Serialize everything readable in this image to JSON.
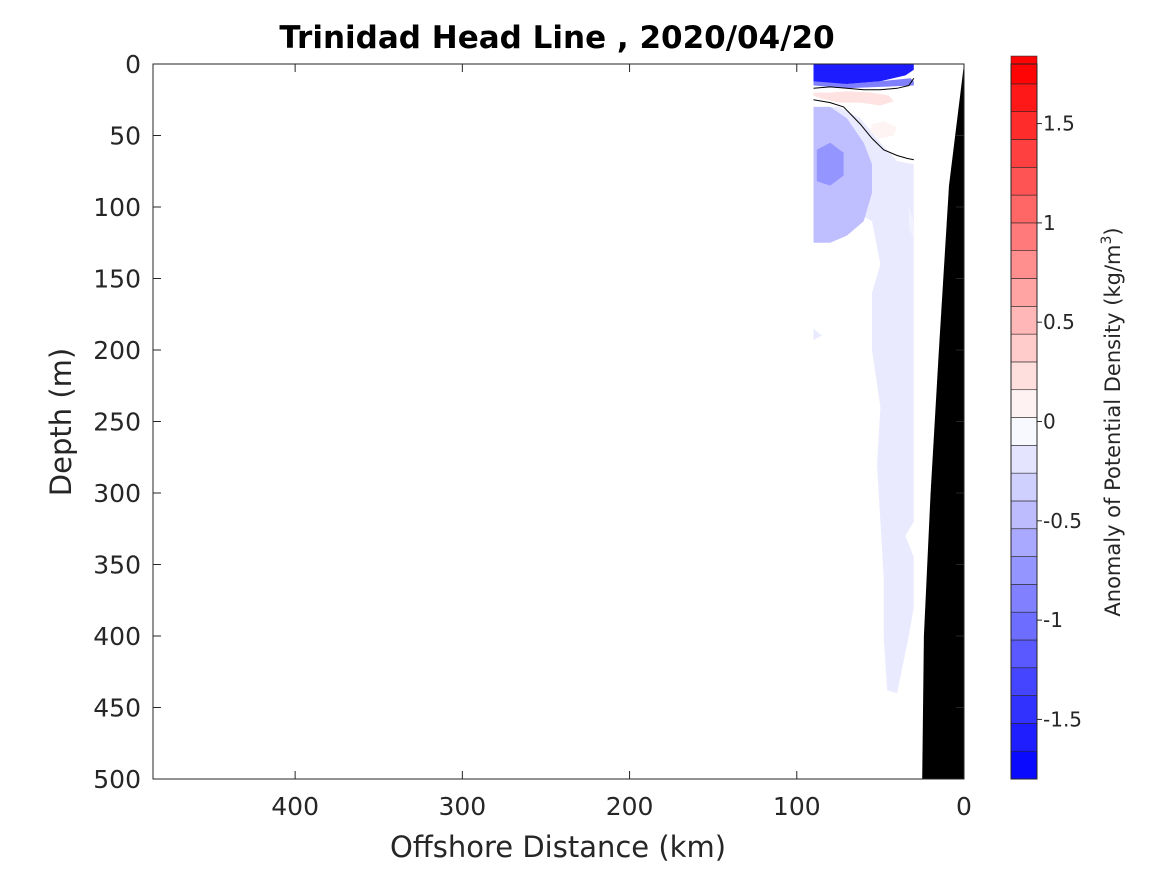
{
  "chart_data": {
    "type": "heatmap",
    "title": "Trinidad Head Line , 2020/04/20",
    "xlabel": "Offshore Distance (km)",
    "ylabel": "Depth (m)",
    "xlim": [
      485,
      0
    ],
    "ylim": [
      0,
      500
    ],
    "x_direction": "reversed",
    "y_direction": "reversed",
    "x_ticks": [
      400,
      300,
      200,
      100,
      0
    ],
    "y_ticks": [
      0,
      50,
      100,
      150,
      200,
      250,
      300,
      350,
      400,
      450,
      500
    ],
    "grid": false,
    "colorbar": {
      "label": "Anomaly of Potential Density (kg/m",
      "label_superscript": "3",
      "label_suffix": ")",
      "range": [
        -1.8,
        1.8
      ],
      "level_step": 0.14,
      "ticks": [
        -1.5,
        -1,
        -0.5,
        0,
        0.5,
        1,
        1.5
      ],
      "tick_labels": [
        "-1.5",
        "-1",
        "-0.5",
        "0",
        "0.5",
        "1",
        "1.5"
      ],
      "colormap": "blue-white-red",
      "low_color": "#0000ff",
      "mid_color": "#ffffff",
      "high_color": "#ff0000"
    },
    "regions": [
      {
        "name": "surface-dense-anomaly",
        "value": -1.6,
        "points": [
          [
            90,
            0
          ],
          [
            30,
            0
          ],
          [
            30,
            4
          ],
          [
            35,
            8
          ],
          [
            50,
            12
          ],
          [
            70,
            14
          ],
          [
            90,
            12
          ]
        ]
      },
      {
        "name": "surface-negative-band",
        "value": -0.9,
        "points": [
          [
            90,
            10
          ],
          [
            70,
            14
          ],
          [
            50,
            12
          ],
          [
            32,
            10
          ],
          [
            30,
            12
          ],
          [
            30,
            15
          ],
          [
            50,
            16
          ],
          [
            70,
            17
          ],
          [
            90,
            15
          ]
        ]
      },
      {
        "name": "upper-positive-anomaly",
        "value": 0.2,
        "points": [
          [
            90,
            20
          ],
          [
            80,
            20
          ],
          [
            70,
            19
          ],
          [
            55,
            20
          ],
          [
            45,
            22
          ],
          [
            42,
            26
          ],
          [
            50,
            29
          ],
          [
            62,
            27
          ],
          [
            75,
            27
          ],
          [
            86,
            24
          ],
          [
            90,
            22
          ]
        ]
      },
      {
        "name": "mid-positive-anomaly",
        "value": 0.08,
        "points": [
          [
            55,
            42
          ],
          [
            48,
            40
          ],
          [
            40,
            44
          ],
          [
            42,
            50
          ],
          [
            50,
            52
          ],
          [
            56,
            48
          ]
        ]
      },
      {
        "name": "broad-light-negative",
        "value": -0.15,
        "points": [
          [
            90,
            30
          ],
          [
            75,
            30
          ],
          [
            62,
            38
          ],
          [
            50,
            55
          ],
          [
            40,
            68
          ],
          [
            30,
            70
          ],
          [
            30,
            320
          ],
          [
            35,
            330
          ],
          [
            30,
            345
          ],
          [
            30,
            380
          ],
          [
            33,
            400
          ],
          [
            40,
            440
          ],
          [
            46,
            438
          ],
          [
            48,
            400
          ],
          [
            48,
            360
          ],
          [
            50,
            320
          ],
          [
            52,
            280
          ],
          [
            50,
            240
          ],
          [
            55,
            200
          ],
          [
            55,
            160
          ],
          [
            50,
            140
          ],
          [
            55,
            110
          ],
          [
            70,
            100
          ],
          [
            88,
            100
          ],
          [
            90,
            120
          ],
          [
            90,
            185
          ],
          [
            85,
            190
          ],
          [
            90,
            193
          ],
          [
            90,
            30
          ]
        ]
      },
      {
        "name": "deep-moderate-negative",
        "value": -0.45,
        "points": [
          [
            90,
            30
          ],
          [
            80,
            30
          ],
          [
            70,
            38
          ],
          [
            60,
            55
          ],
          [
            55,
            70
          ],
          [
            55,
            90
          ],
          [
            60,
            110
          ],
          [
            70,
            120
          ],
          [
            80,
            125
          ],
          [
            90,
            125
          ]
        ]
      },
      {
        "name": "core-negative-anomaly",
        "value": -0.75,
        "points": [
          [
            88,
            60
          ],
          [
            80,
            55
          ],
          [
            72,
            62
          ],
          [
            72,
            78
          ],
          [
            80,
            85
          ],
          [
            88,
            82
          ]
        ]
      },
      {
        "name": "nearshore-light-negative",
        "value": -0.1,
        "points": [
          [
            33,
            100
          ],
          [
            30,
            110
          ],
          [
            30,
            122
          ],
          [
            33,
            115
          ]
        ]
      }
    ],
    "contours": [
      {
        "level": 0,
        "points": [
          [
            90,
            17
          ],
          [
            80,
            16
          ],
          [
            70,
            17
          ],
          [
            60,
            18
          ],
          [
            50,
            18
          ],
          [
            40,
            17
          ],
          [
            33,
            15
          ],
          [
            30,
            10
          ]
        ]
      },
      {
        "level": 0,
        "points": [
          [
            90,
            25
          ],
          [
            80,
            27
          ],
          [
            72,
            30
          ],
          [
            62,
            42
          ],
          [
            55,
            52
          ],
          [
            48,
            60
          ],
          [
            40,
            64
          ],
          [
            34,
            66
          ],
          [
            30,
            67
          ]
        ]
      }
    ],
    "bathymetry": {
      "color": "#000000",
      "points": [
        [
          0,
          0
        ],
        [
          9,
          85
        ],
        [
          15,
          200
        ],
        [
          20,
          300
        ],
        [
          24,
          400
        ],
        [
          25,
          500
        ],
        [
          0,
          500
        ]
      ]
    }
  }
}
